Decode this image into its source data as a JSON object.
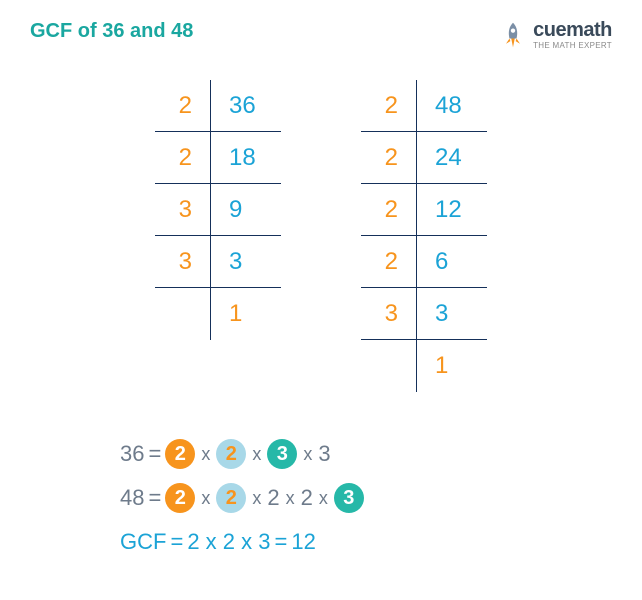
{
  "colors": {
    "title": "#1aa7a0",
    "orange": "#f7941d",
    "blue": "#1ba3d6",
    "darknavy": "#15305a",
    "gray": "#6e7b8b",
    "border": "#15305a",
    "circ_orange_bg": "#f7941d",
    "circ_lightblue_bg": "#a8d8e8",
    "circ_teal_bg": "#26b8a8",
    "circ_text_white": "#ffffff",
    "circ_text_orange": "#f7941d",
    "rocket_body": "#7b8fa6",
    "rocket_flame": "#f7941d"
  },
  "title": "GCF of 36 and 48",
  "brand": "cuemath",
  "tagline": "THE MATH EXPERT",
  "table1": {
    "left": [
      "2",
      "2",
      "3",
      "3",
      ""
    ],
    "right": [
      "36",
      "18",
      "9",
      "3",
      "1"
    ]
  },
  "table2": {
    "left": [
      "2",
      "2",
      "2",
      "2",
      "3",
      ""
    ],
    "right": [
      "48",
      "24",
      "12",
      "6",
      "3",
      "1"
    ]
  },
  "eq1": {
    "label": "36",
    "eq": "=",
    "factors": [
      {
        "v": "2",
        "circ": "orange"
      },
      {
        "v": "2",
        "circ": "lightblue"
      },
      {
        "v": "3",
        "circ": "teal"
      },
      {
        "v": "3",
        "circ": null
      }
    ]
  },
  "eq2": {
    "label": "48",
    "eq": "=",
    "factors": [
      {
        "v": "2",
        "circ": "orange"
      },
      {
        "v": "2",
        "circ": "lightblue"
      },
      {
        "v": "2",
        "circ": null
      },
      {
        "v": "2",
        "circ": null
      },
      {
        "v": "3",
        "circ": "teal"
      }
    ]
  },
  "gcf": {
    "label": "GCF",
    "eq": "=",
    "expr": "2 x 2 x 3",
    "eq2": "=",
    "result": "12"
  }
}
